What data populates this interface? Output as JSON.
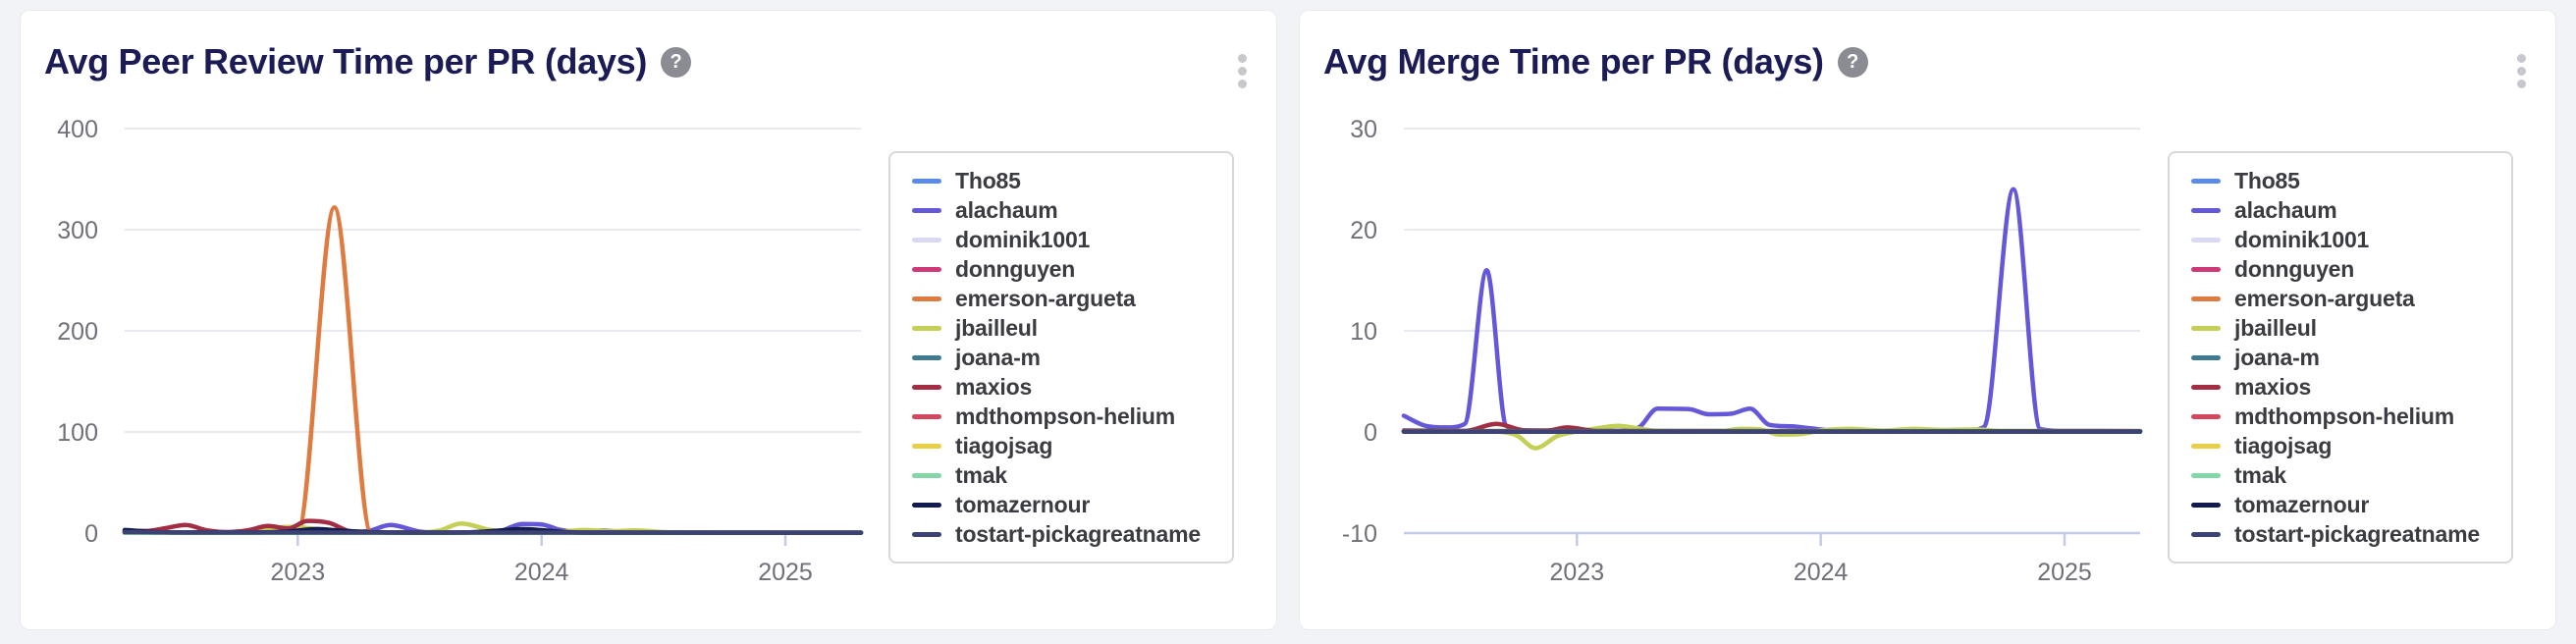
{
  "page": {
    "background": "#f2f3f7"
  },
  "colors": {
    "card_bg": "#ffffff",
    "card_border": "#e9eaef",
    "title_text": "#1b1c55",
    "axis_text": "#70707a",
    "gridline": "#e8e9ee",
    "axis_line": "#c3cbe8",
    "legend_text": "#3b3c42",
    "help_icon_bg": "#8a8b93",
    "kebab_dot": "#c7c8cd"
  },
  "cards": [
    {
      "title": "Avg Peer Review Time per PR (days)",
      "help_glyph": "?",
      "chart_data": {
        "type": "line",
        "title": "Avg Peer Review Time per PR (days)",
        "xlabel": "",
        "ylabel": "",
        "grid": true,
        "legend_position": "right",
        "x_domain": [
          2022.29,
          2025.31
        ],
        "x_ticks": [
          2023,
          2024,
          2025
        ],
        "ylim": [
          0,
          400
        ],
        "y_ticks": [
          400,
          300,
          200,
          100,
          0
        ],
        "series": [
          {
            "name": "Tho85",
            "color": "#588ce8",
            "points": [
              [
                2022.29,
                0.4
              ],
              [
                2025.31,
                0.4
              ]
            ]
          },
          {
            "name": "alachaum",
            "color": "#6457d8",
            "points": [
              [
                2022.29,
                0.3
              ],
              [
                2023.17,
                0.3
              ],
              [
                2023.29,
                2
              ],
              [
                2023.38,
                8
              ],
              [
                2023.5,
                1.5
              ],
              [
                2023.58,
                0.4
              ],
              [
                2023.71,
                0.3
              ],
              [
                2023.83,
                2
              ],
              [
                2023.92,
                9
              ],
              [
                2024.0,
                8.5
              ],
              [
                2024.08,
                3
              ],
              [
                2024.17,
                1
              ],
              [
                2024.25,
                2.5
              ],
              [
                2024.33,
                1
              ],
              [
                2024.42,
                0.4
              ],
              [
                2025.31,
                0.3
              ]
            ]
          },
          {
            "name": "dominik1001",
            "color": "#d9d8f5",
            "points": [
              [
                2022.29,
                0.3
              ],
              [
                2025.31,
                0.3
              ]
            ]
          },
          {
            "name": "donnguyen",
            "color": "#ce3a78",
            "points": [
              [
                2022.29,
                0.3
              ],
              [
                2025.31,
                0.3
              ]
            ]
          },
          {
            "name": "emerson-argueta",
            "color": "#de7b40",
            "points": [
              [
                2022.29,
                0.8
              ],
              [
                2022.88,
                0.8
              ],
              [
                2023.0,
                1
              ],
              [
                2023.15,
                322
              ],
              [
                2023.3,
                1
              ],
              [
                2023.42,
                0.5
              ],
              [
                2025.31,
                0.4
              ]
            ]
          },
          {
            "name": "jbailleul",
            "color": "#c3cf55",
            "points": [
              [
                2022.29,
                0.4
              ],
              [
                2022.71,
                0.4
              ],
              [
                2022.83,
                2
              ],
              [
                2022.96,
                6
              ],
              [
                2023.04,
                5
              ],
              [
                2023.13,
                1.5
              ],
              [
                2023.21,
                0.5
              ],
              [
                2023.46,
                0.4
              ],
              [
                2023.58,
                2.5
              ],
              [
                2023.67,
                9.5
              ],
              [
                2023.79,
                3
              ],
              [
                2023.88,
                0.8
              ],
              [
                2023.96,
                0.6
              ],
              [
                2024.08,
                1.5
              ],
              [
                2024.17,
                3
              ],
              [
                2024.29,
                1.8
              ],
              [
                2024.38,
                2.6
              ],
              [
                2024.5,
                1
              ],
              [
                2024.58,
                0.4
              ],
              [
                2025.31,
                0.3
              ]
            ]
          },
          {
            "name": "joana-m",
            "color": "#3f7a90",
            "points": [
              [
                2022.29,
                0.3
              ],
              [
                2025.31,
                0.3
              ]
            ]
          },
          {
            "name": "maxios",
            "color": "#a32e44",
            "points": [
              [
                2022.29,
                2.5
              ],
              [
                2022.38,
                2
              ],
              [
                2022.46,
                5
              ],
              [
                2022.54,
                8
              ],
              [
                2022.63,
                2.5
              ],
              [
                2022.71,
                1
              ],
              [
                2022.79,
                2.5
              ],
              [
                2022.88,
                7
              ],
              [
                2022.96,
                4.5
              ],
              [
                2023.04,
                12
              ],
              [
                2023.13,
                10
              ],
              [
                2023.21,
                2
              ],
              [
                2023.29,
                0.8
              ],
              [
                2023.42,
                0.4
              ],
              [
                2025.31,
                0.3
              ]
            ]
          },
          {
            "name": "mdthompson-helium",
            "color": "#d4485e",
            "points": [
              [
                2022.29,
                0.3
              ],
              [
                2025.31,
                0.3
              ]
            ]
          },
          {
            "name": "tiagojsag",
            "color": "#e9cf46",
            "points": [
              [
                2022.29,
                0.3
              ],
              [
                2025.31,
                0.3
              ]
            ]
          },
          {
            "name": "tmak",
            "color": "#82d6a8",
            "points": [
              [
                2022.29,
                0.3
              ],
              [
                2025.31,
                0.3
              ]
            ]
          },
          {
            "name": "tomazernour",
            "color": "#111b4e",
            "points": [
              [
                2022.29,
                3
              ],
              [
                2022.42,
                1
              ],
              [
                2022.54,
                0.6
              ],
              [
                2022.83,
                0.6
              ],
              [
                2022.96,
                1.5
              ],
              [
                2023.08,
                4
              ],
              [
                2023.17,
                2.5
              ],
              [
                2023.29,
                1
              ],
              [
                2023.5,
                0.5
              ],
              [
                2023.71,
                0.8
              ],
              [
                2023.83,
                2.5
              ],
              [
                2023.92,
                4
              ],
              [
                2024.04,
                2
              ],
              [
                2024.13,
                0.8
              ],
              [
                2024.25,
                0.5
              ],
              [
                2025.31,
                0.4
              ]
            ]
          },
          {
            "name": "tostart-pickagreatname",
            "color": "#3c4273",
            "points": [
              [
                2022.29,
                1
              ],
              [
                2022.5,
                0.6
              ],
              [
                2025.31,
                0.5
              ]
            ]
          }
        ]
      }
    },
    {
      "title": "Avg Merge Time per PR (days)",
      "help_glyph": "?",
      "chart_data": {
        "type": "line",
        "title": "Avg Merge Time per PR (days)",
        "xlabel": "",
        "ylabel": "",
        "grid": true,
        "legend_position": "right",
        "x_domain": [
          2022.29,
          2025.31
        ],
        "x_ticks": [
          2023,
          2024,
          2025
        ],
        "ylim": [
          -10,
          30
        ],
        "y_ticks": [
          30,
          20,
          10,
          0,
          -10
        ],
        "series": [
          {
            "name": "Tho85",
            "color": "#588ce8",
            "points": [
              [
                2022.29,
                0.08
              ],
              [
                2025.31,
                0.08
              ]
            ]
          },
          {
            "name": "alachaum",
            "color": "#6457d8",
            "points": [
              [
                2022.29,
                1.6
              ],
              [
                2022.38,
                0.6
              ],
              [
                2022.46,
                0.45
              ],
              [
                2022.54,
                0.8
              ],
              [
                2022.63,
                16
              ],
              [
                2022.71,
                0.6
              ],
              [
                2022.79,
                0.15
              ],
              [
                2023.13,
                0.1
              ],
              [
                2023.25,
                0.4
              ],
              [
                2023.33,
                2.3
              ],
              [
                2023.46,
                2.25
              ],
              [
                2023.54,
                1.75
              ],
              [
                2023.63,
                1.8
              ],
              [
                2023.71,
                2.3
              ],
              [
                2023.79,
                0.7
              ],
              [
                2023.88,
                0.55
              ],
              [
                2023.96,
                0.35
              ],
              [
                2024.08,
                0.1
              ],
              [
                2024.58,
                0.1
              ],
              [
                2024.67,
                0.5
              ],
              [
                2024.79,
                24
              ],
              [
                2024.9,
                0.3
              ],
              [
                2025.0,
                0.1
              ],
              [
                2025.31,
                0.08
              ]
            ]
          },
          {
            "name": "dominik1001",
            "color": "#d9d8f5",
            "points": [
              [
                2022.29,
                0.08
              ],
              [
                2025.31,
                0.08
              ]
            ]
          },
          {
            "name": "donnguyen",
            "color": "#ce3a78",
            "points": [
              [
                2022.29,
                0.08
              ],
              [
                2025.31,
                0.08
              ]
            ]
          },
          {
            "name": "emerson-argueta",
            "color": "#de7b40",
            "points": [
              [
                2022.29,
                0.1
              ],
              [
                2025.31,
                0.1
              ]
            ]
          },
          {
            "name": "jbailleul",
            "color": "#c3cf55",
            "points": [
              [
                2022.29,
                0.1
              ],
              [
                2022.63,
                0.05
              ],
              [
                2022.75,
                -0.3
              ],
              [
                2022.83,
                -1.6
              ],
              [
                2022.92,
                -0.4
              ],
              [
                2023.0,
                0.05
              ],
              [
                2023.08,
                0.35
              ],
              [
                2023.17,
                0.6
              ],
              [
                2023.25,
                0.35
              ],
              [
                2023.33,
                0.1
              ],
              [
                2023.58,
                0.05
              ],
              [
                2023.67,
                0.3
              ],
              [
                2023.75,
                0.25
              ],
              [
                2023.83,
                -0.25
              ],
              [
                2023.92,
                -0.2
              ],
              [
                2024.0,
                0.15
              ],
              [
                2024.13,
                0.3
              ],
              [
                2024.25,
                0.15
              ],
              [
                2024.38,
                0.3
              ],
              [
                2024.5,
                0.2
              ],
              [
                2024.63,
                0.25
              ],
              [
                2024.75,
                0.1
              ],
              [
                2025.31,
                0.05
              ]
            ]
          },
          {
            "name": "joana-m",
            "color": "#3f7a90",
            "points": [
              [
                2022.29,
                0.08
              ],
              [
                2025.31,
                0.08
              ]
            ]
          },
          {
            "name": "maxios",
            "color": "#a32e44",
            "points": [
              [
                2022.29,
                0.15
              ],
              [
                2022.54,
                0.1
              ],
              [
                2022.67,
                0.8
              ],
              [
                2022.79,
                0.15
              ],
              [
                2022.88,
                0.15
              ],
              [
                2022.96,
                0.45
              ],
              [
                2023.08,
                0.1
              ],
              [
                2025.31,
                0.05
              ]
            ]
          },
          {
            "name": "mdthompson-helium",
            "color": "#d4485e",
            "points": [
              [
                2022.29,
                0.08
              ],
              [
                2025.31,
                0.08
              ]
            ]
          },
          {
            "name": "tiagojsag",
            "color": "#e9cf46",
            "points": [
              [
                2022.29,
                0.08
              ],
              [
                2025.31,
                0.08
              ]
            ]
          },
          {
            "name": "tmak",
            "color": "#82d6a8",
            "points": [
              [
                2022.29,
                0.08
              ],
              [
                2025.31,
                0.08
              ]
            ]
          },
          {
            "name": "tomazernour",
            "color": "#111b4e",
            "points": [
              [
                2022.29,
                0.05
              ],
              [
                2025.31,
                0.05
              ]
            ]
          },
          {
            "name": "tostart-pickagreatname",
            "color": "#3c4273",
            "points": [
              [
                2022.29,
                0.02
              ],
              [
                2025.31,
                0.02
              ]
            ]
          }
        ]
      }
    }
  ]
}
